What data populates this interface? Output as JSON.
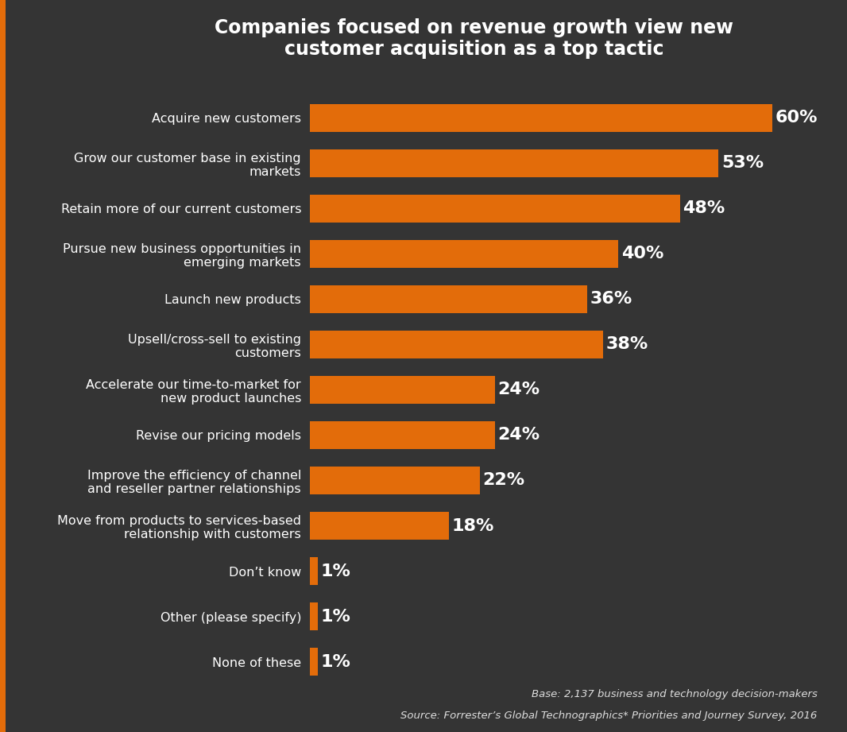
{
  "chart_data": {
    "type": "bar",
    "orientation": "horizontal",
    "title": "Companies focused on revenue growth view new customer acquisition as a top tactic",
    "categories": [
      "Acquire new customers",
      "Grow our customer base in existing markets",
      "Retain more of our current customers",
      "Pursue new business opportunities in emerging markets",
      "Launch new products",
      "Upsell/cross-sell to existing customers",
      "Accelerate our time-to-market for new product launches",
      "Revise our pricing models",
      "Improve the efficiency of channel and reseller partner relationships",
      "Move from products to services-based relationship with customers",
      "Don’t know",
      "Other (please specify)",
      "None of these"
    ],
    "values": [
      60,
      53,
      48,
      40,
      36,
      38,
      24,
      24,
      22,
      18,
      1,
      1,
      1
    ],
    "value_labels": [
      "60%",
      "53%",
      "48%",
      "40%",
      "36%",
      "38%",
      "24%",
      "24%",
      "22%",
      "18%",
      "1%",
      "1%",
      "1%"
    ],
    "data_labels": true,
    "color": "#e36c0a",
    "tick_labels": "y",
    "grid": false,
    "annotations": [
      "Base: 2,137 business and technology decision-makers",
      "Source: Forrester’s Global Technographics* Priorities and Journey Survey, 2016"
    ]
  }
}
